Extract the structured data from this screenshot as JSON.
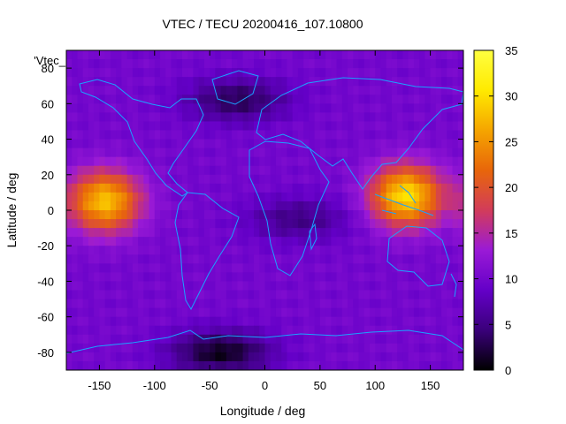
{
  "chart_data": {
    "type": "heatmap",
    "title": "VTEC / TECU 20200416_107.10800",
    "xlabel": "Longitude / deg",
    "ylabel": "Latitude / deg",
    "legend_entry": "'Vtec_",
    "xlim": [
      -180,
      180
    ],
    "ylim": [
      -90,
      90
    ],
    "x_ticks": [
      -150,
      -100,
      -50,
      0,
      50,
      100,
      150
    ],
    "y_ticks": [
      -80,
      -60,
      -40,
      -20,
      0,
      20,
      40,
      60,
      80
    ],
    "colorbar": {
      "range": [
        0,
        35
      ],
      "ticks": [
        0,
        5,
        10,
        15,
        20,
        25,
        30,
        35
      ],
      "palette": [
        "#000000",
        "#3a007a",
        "#6400c8",
        "#9a1ad6",
        "#d23c5a",
        "#e8660a",
        "#f5a500",
        "#ffea00",
        "#ffff40"
      ]
    },
    "features": [
      {
        "name": "anomaly-east-pacific",
        "lon": -145,
        "lat": 5,
        "peak_tecu": 28
      },
      {
        "name": "anomaly-west-pacific",
        "lon": 128,
        "lat": 8,
        "peak_tecu": 30
      },
      {
        "name": "trough-north-atlantic",
        "lon": -25,
        "lat": 62,
        "min_tecu": 3
      },
      {
        "name": "trough-south-atlantic",
        "lon": -40,
        "lat": -80,
        "min_tecu": 1
      },
      {
        "name": "trough-central-africa",
        "lon": 30,
        "lat": -5,
        "min_tecu": 5
      },
      {
        "name": "background",
        "value_tecu": 10
      }
    ]
  }
}
